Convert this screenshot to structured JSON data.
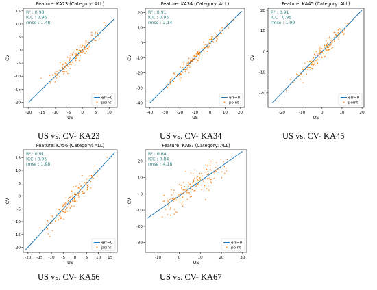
{
  "colors": {
    "line": "#1f77b4",
    "points": "#ff7f0e",
    "stats_text": "#2f7e7e",
    "axis": "#000000",
    "legend_border": "#cccccc"
  },
  "chart_data": [
    {
      "type": "scatter",
      "title": "Feature: KA23 (Category: ALL)",
      "caption": "US vs. CV- KA23",
      "xlabel": "US",
      "ylabel": "CV",
      "xlim": [
        -22,
        13
      ],
      "ylim": [
        -22,
        16
      ],
      "xticks": [
        -20,
        -15,
        -10,
        -5,
        0,
        5,
        10
      ],
      "yticks": [
        -20,
        -15,
        -10,
        -5,
        0,
        5,
        10,
        15
      ],
      "stats": [
        "R² : 0.93",
        "ICC : 0.96",
        "rmse : 1.48"
      ],
      "legend": {
        "line": "err=0",
        "points": "point",
        "location": "lower-right"
      },
      "reference_line": {
        "x": [
          -20,
          12
        ],
        "y": [
          -20,
          12
        ]
      },
      "points": {
        "n": 130,
        "x_range": [
          -18,
          12
        ],
        "noise": 1.5
      }
    },
    {
      "type": "scatter",
      "title": "Feature: KA34 (Category: ALL)",
      "caption": "US vs. CV- KA34",
      "xlabel": "US",
      "ylabel": "CV",
      "xlim": [
        -43,
        23
      ],
      "ylim": [
        -43,
        23
      ],
      "xticks": [
        -40,
        -30,
        -20,
        -10,
        0,
        10,
        20
      ],
      "yticks": [
        -40,
        -30,
        -20,
        -10,
        0,
        10,
        20
      ],
      "stats": [
        "R² : 0.91",
        "ICC : 0.95",
        "rmse : 2.14"
      ],
      "legend": {
        "line": "err=0",
        "points": "point",
        "location": "lower-right"
      },
      "reference_line": {
        "x": [
          -40,
          21
        ],
        "y": [
          -40,
          21
        ]
      },
      "points": {
        "n": 130,
        "x_range": [
          -38,
          20
        ],
        "noise": 2.1
      }
    },
    {
      "type": "scatter",
      "title": "Feature: KA45 (Category: ALL)",
      "caption": "US vs. CV- KA45",
      "xlabel": "US",
      "ylabel": "CV",
      "xlim": [
        -27,
        21
      ],
      "ylim": [
        -27,
        21
      ],
      "xticks": [
        -20,
        -10,
        0,
        10,
        20
      ],
      "yticks": [
        -20,
        -10,
        0,
        10,
        20
      ],
      "stats": [
        "R² : 0.91",
        "ICC : 0.95",
        "rmse : 1.99"
      ],
      "legend": {
        "line": "err=0",
        "points": "point",
        "location": "lower-right"
      },
      "reference_line": {
        "x": [
          -25,
          20
        ],
        "y": [
          -25,
          20
        ]
      },
      "points": {
        "n": 130,
        "x_range": [
          -21,
          18
        ],
        "noise": 2.0
      }
    },
    {
      "type": "scatter",
      "title": "Feature: KA56 (Category: ALL)",
      "caption": "US vs. CV- KA56",
      "xlabel": "US",
      "ylabel": "CV",
      "xlim": [
        -22,
        18
      ],
      "ylim": [
        -22,
        18
      ],
      "xticks": [
        -20,
        -15,
        -10,
        -5,
        0,
        5,
        10,
        15
      ],
      "yticks": [
        -20,
        -15,
        -10,
        -5,
        0,
        5,
        10,
        15
      ],
      "stats": [
        "R² : 0.91",
        "ICC : 0.95",
        "rmse : 1.98"
      ],
      "legend": {
        "line": "err=0",
        "points": "point",
        "location": "lower-right"
      },
      "reference_line": {
        "x": [
          -21,
          17
        ],
        "y": [
          -21,
          17
        ]
      },
      "points": {
        "n": 130,
        "x_range": [
          -18,
          16
        ],
        "noise": 2.0
      }
    },
    {
      "type": "scatter",
      "title": "Feature: KA67 (Category: ALL)",
      "caption": "US vs. CV- KA67",
      "xlabel": "US",
      "ylabel": "CV",
      "xlim": [
        -16,
        32
      ],
      "ylim": [
        -36,
        27
      ],
      "xticks": [
        -10,
        0,
        10,
        20,
        30
      ],
      "yticks": [
        -30,
        -20,
        -10,
        0,
        10,
        20
      ],
      "stats": [
        "R² : 0.64",
        "ICC : 0.84",
        "rmse : 4.18"
      ],
      "legend": {
        "line": "err=0",
        "points": "point",
        "location": "lower-right"
      },
      "reference_line": {
        "x": [
          -15,
          30
        ],
        "y": [
          -15,
          26
        ]
      },
      "points": {
        "n": 150,
        "x_range": [
          -14,
          28
        ],
        "noise": 4.2
      }
    }
  ]
}
